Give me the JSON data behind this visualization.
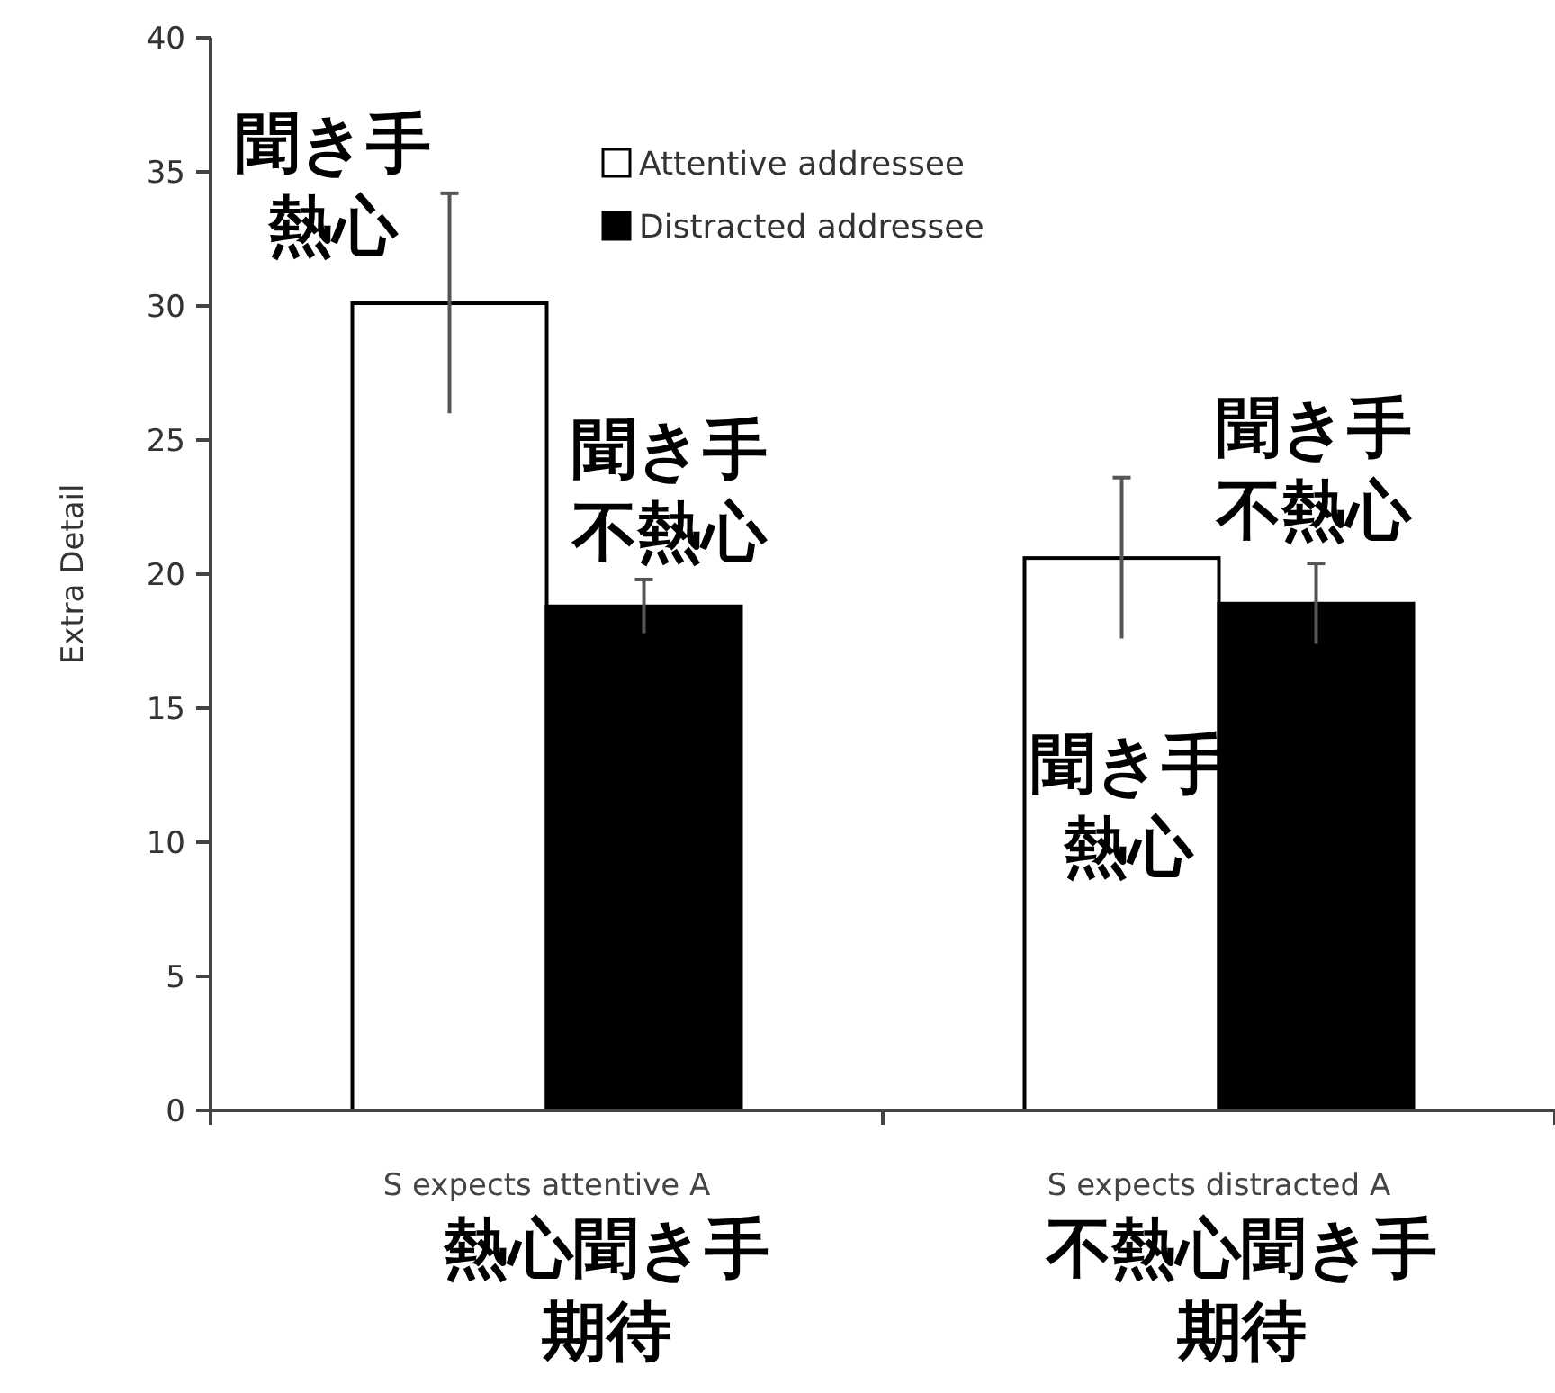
{
  "chart_data": {
    "type": "bar",
    "ylabel": "Extra Detail",
    "categories": [
      "S expects attentive A",
      "S expects distracted A"
    ],
    "series": [
      {
        "name": "Attentive addressee",
        "color": "#ffffff",
        "values": [
          30.1,
          20.6
        ],
        "errors": [
          4.1,
          3.0
        ]
      },
      {
        "name": "Distracted addressee",
        "color": "#000000",
        "values": [
          18.8,
          18.9
        ],
        "errors": [
          1.0,
          1.5
        ]
      }
    ],
    "ylim": [
      0,
      40
    ],
    "yticks": [
      0,
      5,
      10,
      15,
      20,
      25,
      30,
      35,
      40
    ],
    "legend": "top",
    "annotations": [
      "聞き手熱心",
      "聞き手不熱心",
      "聞き手熱心",
      "聞き手不熱心",
      "熱心聞き手期待",
      "不熱心聞き手期待"
    ]
  }
}
